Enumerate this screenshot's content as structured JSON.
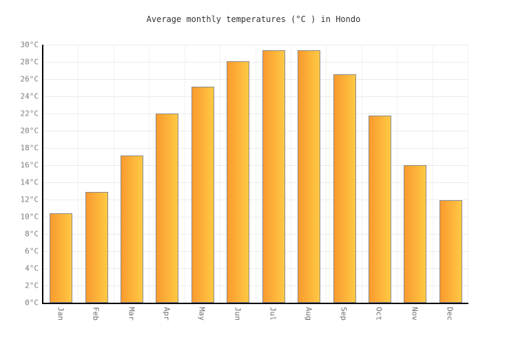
{
  "chart_data": {
    "type": "bar",
    "title": "Average monthly temperatures (°C ) in Hondo",
    "categories": [
      "Jan",
      "Feb",
      "Mar",
      "Apr",
      "May",
      "Jun",
      "Jul",
      "Aug",
      "Sep",
      "Oct",
      "Nov",
      "Dec"
    ],
    "values": [
      10.4,
      12.9,
      17.1,
      22.0,
      25.1,
      28.1,
      29.4,
      29.4,
      26.6,
      21.8,
      16.0,
      11.9
    ],
    "series_name": "Average monthly temperature",
    "unit": "°C",
    "xlabel": "",
    "ylabel": "",
    "ylim": [
      0,
      30
    ],
    "y_tick_step": 2,
    "y_tick_labels": [
      "0°C",
      "2°C",
      "4°C",
      "6°C",
      "8°C",
      "10°C",
      "12°C",
      "14°C",
      "16°C",
      "18°C",
      "20°C",
      "22°C",
      "24°C",
      "26°C",
      "28°C",
      "30°C"
    ],
    "grid": "both",
    "legend_position": "none",
    "colors": {
      "bar_gradient_left": "#fa9a2e",
      "bar_gradient_right": "#ffc944",
      "bar_border": "#8a8a8a",
      "h_gridline": "#ebebeb",
      "v_gridline": "#f2f2f2",
      "axis_line": "#000000",
      "tick_label": "#7d7d7d",
      "title_text": "#333333",
      "background": "#ffffff"
    }
  }
}
